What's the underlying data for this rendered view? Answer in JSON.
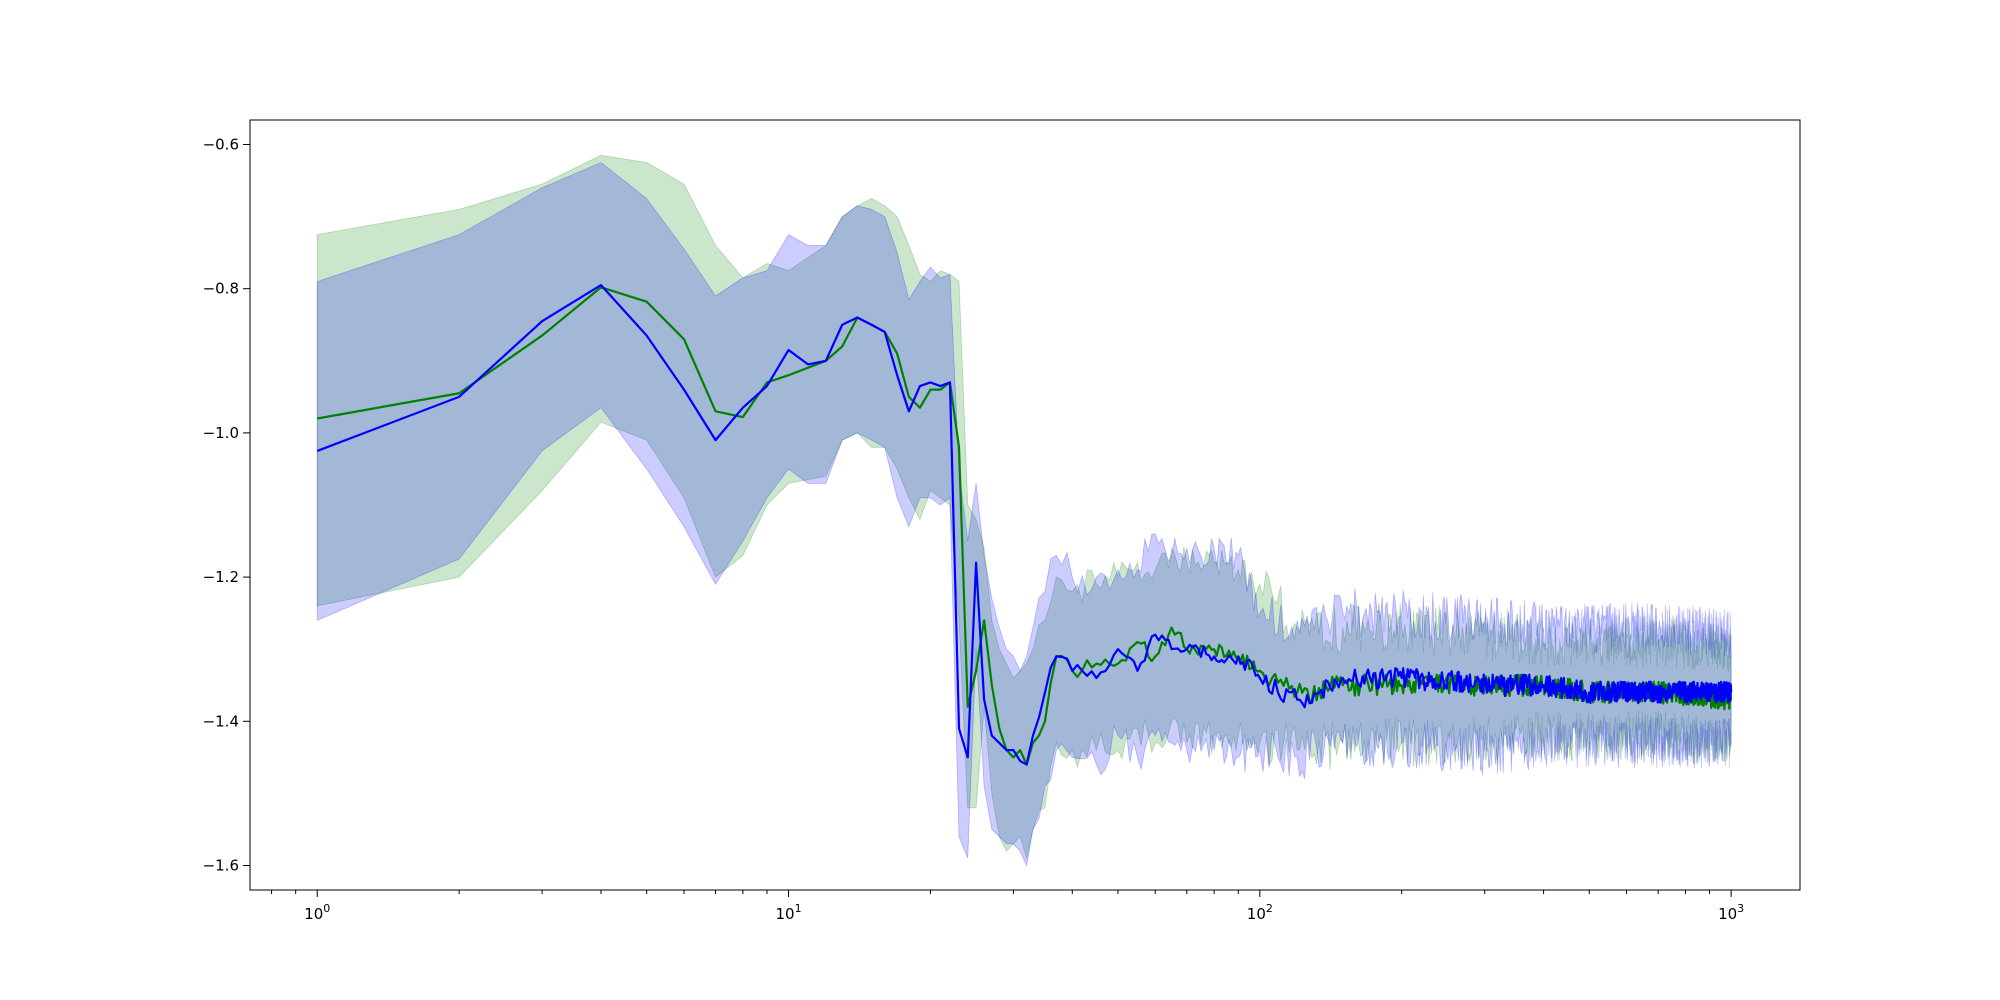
{
  "chart_data": {
    "type": "line",
    "title": "",
    "xlabel": "",
    "ylabel": "",
    "xscale": "log",
    "xlim": [
      0.72,
      1400
    ],
    "ylim": [
      -1.634,
      -0.566
    ],
    "grid": false,
    "legend": "none",
    "x_ticks": [
      1,
      10,
      100,
      1000
    ],
    "x_tick_labels": [
      [
        "10",
        "0"
      ],
      [
        "10",
        "1"
      ],
      [
        "10",
        "2"
      ],
      [
        "10",
        "3"
      ]
    ],
    "y_ticks": [
      -0.6,
      -0.8,
      -1.0,
      -1.2,
      -1.4,
      -1.6
    ],
    "y_tick_labels": [
      "−0.6",
      "−0.8",
      "−1.0",
      "−1.2",
      "−1.4",
      "−1.6"
    ],
    "series": [
      {
        "color": "#008000",
        "band_color": "#008000",
        "band_opacity": 0.2,
        "x": [
          1,
          2,
          3,
          4,
          5,
          6,
          7,
          8,
          9,
          10,
          12,
          13,
          14,
          15,
          16,
          17,
          18,
          19,
          20,
          21,
          22,
          23,
          24,
          25,
          26,
          27,
          28,
          29,
          30,
          31,
          32,
          33,
          35,
          37,
          40,
          45,
          50,
          55,
          60,
          65,
          70,
          80,
          90,
          100,
          120,
          150,
          200,
          300,
          400,
          500,
          700,
          1000
        ],
        "mean": [
          -0.98,
          -0.945,
          -0.865,
          -0.798,
          -0.818,
          -0.87,
          -0.97,
          -0.978,
          -0.93,
          -0.92,
          -0.9,
          -0.88,
          -0.84,
          -0.85,
          -0.86,
          -0.89,
          -0.95,
          -0.965,
          -0.94,
          -0.94,
          -0.93,
          -1.02,
          -1.38,
          -1.33,
          -1.26,
          -1.35,
          -1.41,
          -1.44,
          -1.45,
          -1.44,
          -1.46,
          -1.43,
          -1.4,
          -1.31,
          -1.33,
          -1.32,
          -1.32,
          -1.29,
          -1.31,
          -1.27,
          -1.3,
          -1.3,
          -1.31,
          -1.33,
          -1.36,
          -1.35,
          -1.35,
          -1.35,
          -1.35,
          -1.36,
          -1.36,
          -1.37
        ],
        "upper": [
          -0.725,
          -0.69,
          -0.655,
          -0.615,
          -0.625,
          -0.655,
          -0.74,
          -0.785,
          -0.765,
          -0.775,
          -0.74,
          -0.7,
          -0.685,
          -0.675,
          -0.685,
          -0.7,
          -0.74,
          -0.78,
          -0.79,
          -0.775,
          -0.78,
          -0.79,
          -1.1,
          -1.12,
          -1.16,
          -1.26,
          -1.3,
          -1.32,
          -1.34,
          -1.33,
          -1.32,
          -1.3,
          -1.26,
          -1.2,
          -1.22,
          -1.21,
          -1.2,
          -1.18,
          -1.19,
          -1.16,
          -1.18,
          -1.18,
          -1.19,
          -1.21,
          -1.27,
          -1.27,
          -1.27,
          -1.28,
          -1.29,
          -1.29,
          -1.29,
          -1.3
        ],
        "lower": [
          -1.24,
          -1.2,
          -1.08,
          -0.985,
          -1.01,
          -1.09,
          -1.2,
          -1.17,
          -1.1,
          -1.07,
          -1.06,
          -1.01,
          -1.0,
          -1.02,
          -1.02,
          -1.05,
          -1.09,
          -1.12,
          -1.08,
          -1.09,
          -1.1,
          -1.26,
          -1.52,
          -1.52,
          -1.38,
          -1.5,
          -1.56,
          -1.58,
          -1.57,
          -1.56,
          -1.59,
          -1.55,
          -1.52,
          -1.43,
          -1.44,
          -1.44,
          -1.44,
          -1.41,
          -1.43,
          -1.4,
          -1.43,
          -1.42,
          -1.42,
          -1.43,
          -1.44,
          -1.43,
          -1.43,
          -1.43,
          -1.42,
          -1.42,
          -1.42,
          -1.43
        ]
      },
      {
        "color": "#0000ff",
        "band_color": "#0000ff",
        "band_opacity": 0.2,
        "x": [
          1,
          2,
          3,
          4,
          5,
          6,
          7,
          8,
          9,
          10,
          11,
          12,
          13,
          14,
          15,
          16,
          17,
          18,
          19,
          20,
          21,
          22,
          23,
          24,
          25,
          26,
          27,
          28,
          29,
          30,
          31,
          32,
          33,
          35,
          37,
          40,
          45,
          50,
          55,
          60,
          65,
          70,
          80,
          90,
          100,
          120,
          150,
          200,
          300,
          400,
          500,
          700,
          1000
        ],
        "mean": [
          -1.025,
          -0.95,
          -0.845,
          -0.795,
          -0.865,
          -0.94,
          -1.01,
          -0.965,
          -0.935,
          -0.885,
          -0.905,
          -0.9,
          -0.85,
          -0.84,
          -0.85,
          -0.86,
          -0.92,
          -0.97,
          -0.935,
          -0.93,
          -0.935,
          -0.93,
          -1.41,
          -1.45,
          -1.18,
          -1.37,
          -1.42,
          -1.43,
          -1.44,
          -1.44,
          -1.455,
          -1.46,
          -1.42,
          -1.36,
          -1.31,
          -1.33,
          -1.34,
          -1.3,
          -1.33,
          -1.28,
          -1.3,
          -1.3,
          -1.31,
          -1.31,
          -1.34,
          -1.37,
          -1.34,
          -1.34,
          -1.35,
          -1.35,
          -1.36,
          -1.36,
          -1.36
        ],
        "upper": [
          -0.79,
          -0.725,
          -0.66,
          -0.625,
          -0.675,
          -0.745,
          -0.81,
          -0.785,
          -0.775,
          -0.725,
          -0.74,
          -0.74,
          -0.7,
          -0.685,
          -0.69,
          -0.7,
          -0.75,
          -0.815,
          -0.79,
          -0.77,
          -0.785,
          -0.78,
          -1.05,
          -1.15,
          -1.07,
          -1.17,
          -1.23,
          -1.27,
          -1.3,
          -1.31,
          -1.33,
          -1.31,
          -1.27,
          -1.22,
          -1.17,
          -1.2,
          -1.2,
          -1.19,
          -1.19,
          -1.14,
          -1.17,
          -1.16,
          -1.16,
          -1.17,
          -1.25,
          -1.26,
          -1.25,
          -1.25,
          -1.26,
          -1.27,
          -1.27,
          -1.27,
          -1.28
        ],
        "lower": [
          -1.26,
          -1.175,
          -1.025,
          -0.965,
          -1.05,
          -1.13,
          -1.21,
          -1.15,
          -1.09,
          -1.05,
          -1.07,
          -1.07,
          -1.01,
          -1.0,
          -1.01,
          -1.02,
          -1.09,
          -1.13,
          -1.09,
          -1.09,
          -1.1,
          -1.09,
          -1.56,
          -1.59,
          -1.3,
          -1.49,
          -1.55,
          -1.56,
          -1.57,
          -1.57,
          -1.58,
          -1.6,
          -1.55,
          -1.49,
          -1.44,
          -1.45,
          -1.46,
          -1.42,
          -1.45,
          -1.42,
          -1.43,
          -1.44,
          -1.44,
          -1.45,
          -1.44,
          -1.45,
          -1.43,
          -1.43,
          -1.44,
          -1.43,
          -1.43,
          -1.43,
          -1.43
        ]
      }
    ]
  }
}
